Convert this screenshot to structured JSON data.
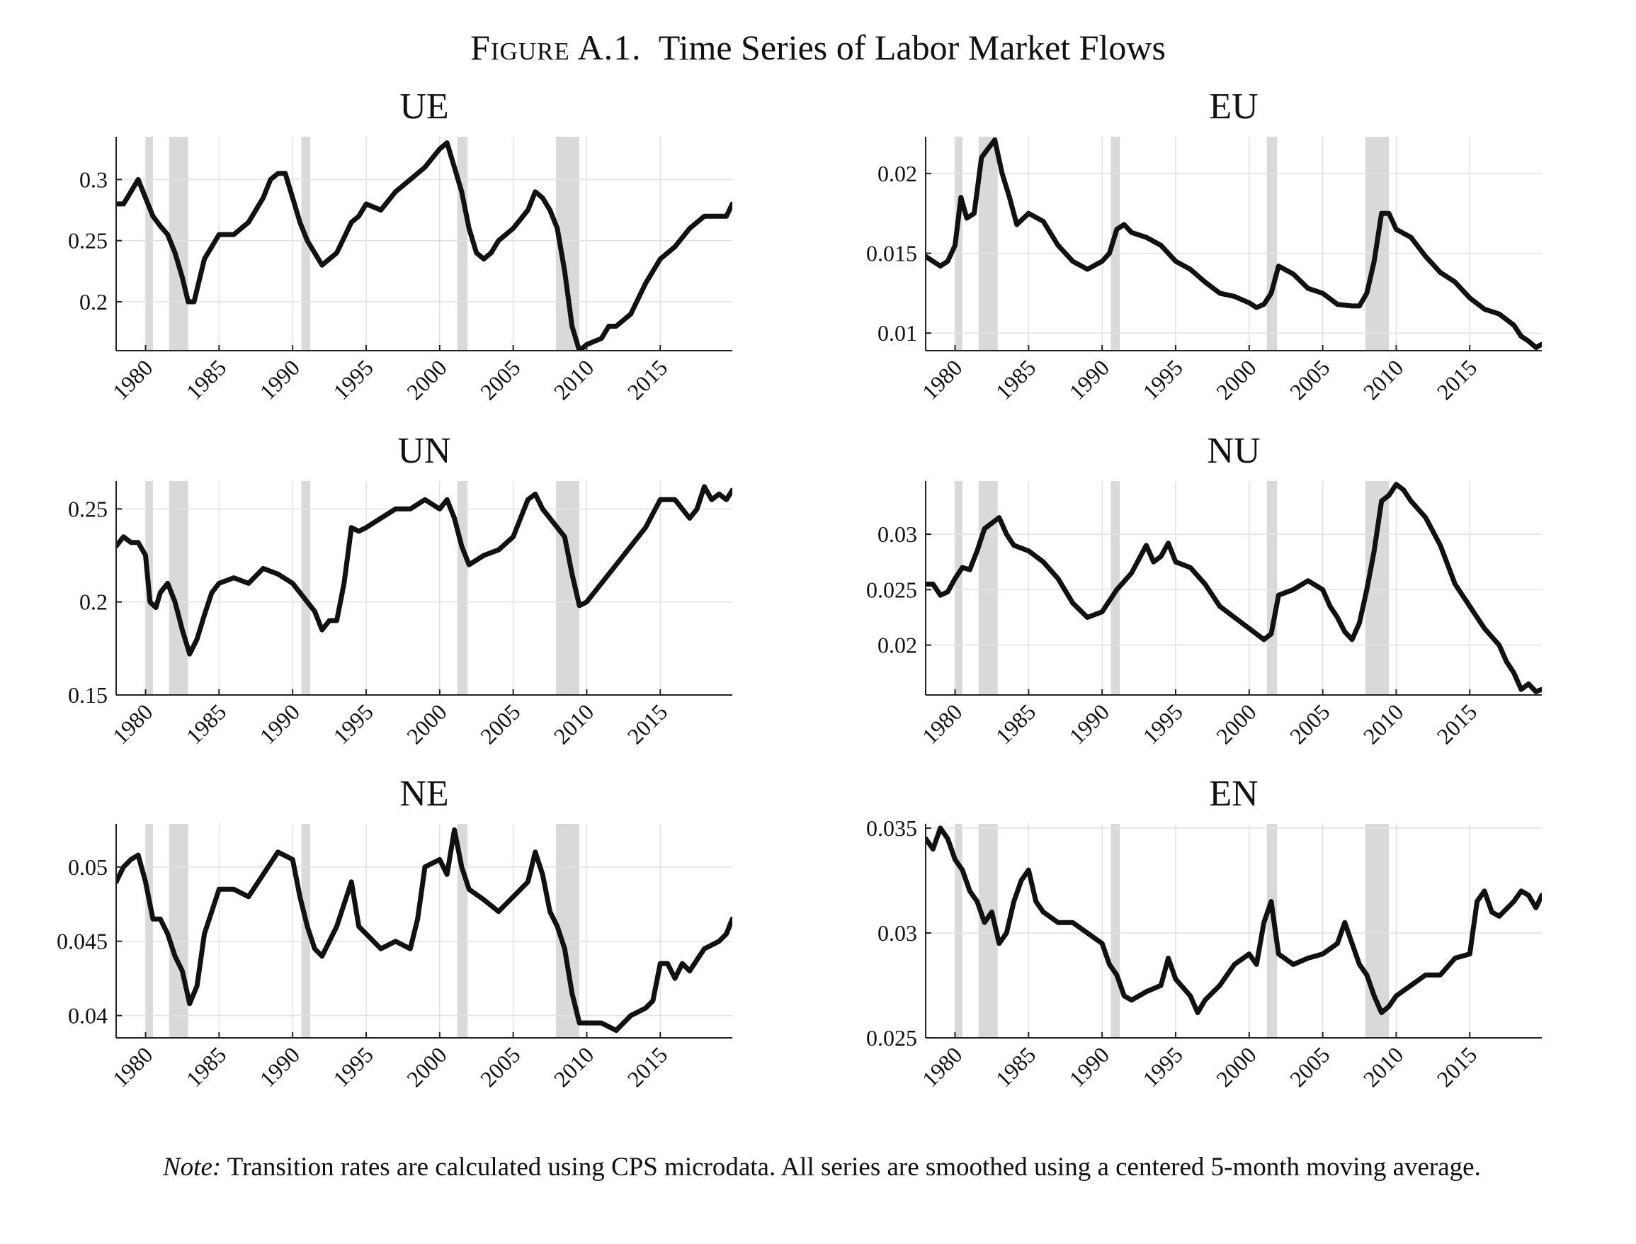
{
  "figure": {
    "label": "Figure A.1.",
    "title": "Time Series of Labor Market Flows"
  },
  "note": {
    "lead": "Note:",
    "text": "Transition rates are calculated using CPS microdata.  All series are smoothed using a centered 5-month moving average."
  },
  "colors": {
    "line": "#111111",
    "recession": "#d9d9d9",
    "grid": "#e3e3e3",
    "axis": "#222222"
  },
  "recessions": [
    [
      1980.0,
      1980.5
    ],
    [
      1981.6,
      1982.9
    ],
    [
      1990.6,
      1991.2
    ],
    [
      2001.2,
      2001.9
    ],
    [
      2007.9,
      2009.5
    ]
  ],
  "chart_data": [
    {
      "type": "line",
      "title": "UE",
      "xlim": [
        1978,
        2019.9
      ],
      "ylim": [
        0.16,
        0.335
      ],
      "xticks": [
        1980,
        1985,
        1990,
        1995,
        2000,
        2005,
        2010,
        2015
      ],
      "yticks": [
        0.2,
        0.25,
        0.3
      ],
      "ytick_labels": [
        "0.2",
        "0.25",
        "0.3"
      ],
      "grid": true,
      "series": [
        {
          "x": [
            1978,
            1978.5,
            1979,
            1979.5,
            1980,
            1980.5,
            1981,
            1981.5,
            1982,
            1982.5,
            1982.9,
            1983.3,
            1984,
            1984.5,
            1985,
            1986,
            1987,
            1988,
            1988.5,
            1989,
            1989.5,
            1990,
            1990.5,
            1991,
            1991.5,
            1992,
            1992.5,
            1993,
            1994,
            1994.5,
            1995,
            1996,
            1997,
            1998,
            1999,
            2000,
            2000.5,
            2001,
            2001.5,
            2002,
            2002.5,
            2003,
            2003.5,
            2004,
            2005,
            2006,
            2006.5,
            2007,
            2007.5,
            2008,
            2008.5,
            2009,
            2009.5,
            2010,
            2011,
            2011.5,
            2012,
            2013,
            2014,
            2015,
            2016,
            2017,
            2018,
            2018.5,
            2019,
            2019.5,
            2019.9
          ],
          "y": [
            0.28,
            0.28,
            0.29,
            0.3,
            0.285,
            0.27,
            0.262,
            0.255,
            0.24,
            0.22,
            0.2,
            0.2,
            0.235,
            0.245,
            0.255,
            0.255,
            0.265,
            0.285,
            0.3,
            0.305,
            0.305,
            0.285,
            0.265,
            0.25,
            0.24,
            0.23,
            0.235,
            0.24,
            0.265,
            0.27,
            0.28,
            0.275,
            0.29,
            0.3,
            0.31,
            0.325,
            0.33,
            0.31,
            0.29,
            0.26,
            0.24,
            0.235,
            0.24,
            0.25,
            0.26,
            0.275,
            0.29,
            0.285,
            0.275,
            0.26,
            0.225,
            0.18,
            0.16,
            0.165,
            0.17,
            0.18,
            0.18,
            0.19,
            0.215,
            0.235,
            0.245,
            0.26,
            0.27,
            0.27,
            0.27,
            0.27,
            0.28
          ]
        }
      ]
    },
    {
      "type": "line",
      "title": "EU",
      "xlim": [
        1978,
        2019.9
      ],
      "ylim": [
        0.0089,
        0.0223
      ],
      "xticks": [
        1980,
        1985,
        1990,
        1995,
        2000,
        2005,
        2010,
        2015
      ],
      "yticks": [
        0.01,
        0.015,
        0.02
      ],
      "ytick_labels": [
        "0.01",
        "0.015",
        "0.02"
      ],
      "grid": true,
      "series": [
        {
          "x": [
            1978,
            1978.5,
            1979,
            1979.5,
            1980,
            1980.4,
            1980.8,
            1981.3,
            1981.8,
            1982.2,
            1982.7,
            1983.2,
            1983.7,
            1984.2,
            1985,
            1986,
            1987,
            1988,
            1989,
            1990,
            1990.5,
            1991,
            1991.5,
            1992,
            1993,
            1994,
            1995,
            1996,
            1997,
            1998,
            1999,
            2000,
            2000.5,
            2001,
            2001.5,
            2002,
            2003,
            2004,
            2005,
            2006,
            2007,
            2007.5,
            2008,
            2008.5,
            2009,
            2009.5,
            2010,
            2011,
            2012,
            2013,
            2014,
            2015,
            2016,
            2017,
            2018,
            2018.5,
            2019,
            2019.5,
            2019.9
          ],
          "y": [
            0.0148,
            0.0145,
            0.0142,
            0.0145,
            0.0155,
            0.0185,
            0.0172,
            0.0175,
            0.021,
            0.0215,
            0.0221,
            0.02,
            0.0185,
            0.0168,
            0.0175,
            0.017,
            0.0155,
            0.0145,
            0.014,
            0.0145,
            0.015,
            0.0165,
            0.0168,
            0.0163,
            0.016,
            0.0155,
            0.0145,
            0.014,
            0.0132,
            0.0125,
            0.0123,
            0.0119,
            0.0116,
            0.0118,
            0.0125,
            0.0142,
            0.0137,
            0.0128,
            0.0125,
            0.0118,
            0.0117,
            0.0117,
            0.0125,
            0.0145,
            0.0175,
            0.0175,
            0.0165,
            0.016,
            0.0148,
            0.0138,
            0.0132,
            0.0122,
            0.0115,
            0.0112,
            0.0105,
            0.0098,
            0.0095,
            0.0091,
            0.0093
          ]
        }
      ]
    },
    {
      "type": "line",
      "title": "UN",
      "xlim": [
        1978,
        2019.9
      ],
      "ylim": [
        0.15,
        0.265
      ],
      "xticks": [
        1980,
        1985,
        1990,
        1995,
        2000,
        2005,
        2010,
        2015
      ],
      "yticks": [
        0.15,
        0.2,
        0.25
      ],
      "ytick_labels": [
        "0.15",
        "0.2",
        "0.25"
      ],
      "grid": true,
      "series": [
        {
          "x": [
            1978,
            1978.5,
            1979,
            1979.5,
            1980,
            1980.3,
            1980.7,
            1981,
            1981.5,
            1982,
            1982.5,
            1983,
            1983.5,
            1984,
            1984.5,
            1985,
            1986,
            1987,
            1988,
            1989,
            1990,
            1991,
            1991.5,
            1992,
            1992.5,
            1993,
            1993.5,
            1994,
            1994.5,
            1995,
            1996,
            1997,
            1998,
            1999,
            2000,
            2000.5,
            2001,
            2001.5,
            2002,
            2003,
            2004,
            2005,
            2005.5,
            2006,
            2006.5,
            2007,
            2008,
            2008.5,
            2009,
            2009.5,
            2010,
            2011,
            2012,
            2013,
            2014,
            2015,
            2016,
            2016.5,
            2017,
            2017.5,
            2018,
            2018.5,
            2019,
            2019.5,
            2019.9
          ],
          "y": [
            0.23,
            0.235,
            0.232,
            0.232,
            0.225,
            0.2,
            0.197,
            0.205,
            0.21,
            0.2,
            0.185,
            0.172,
            0.18,
            0.193,
            0.205,
            0.21,
            0.213,
            0.21,
            0.218,
            0.215,
            0.21,
            0.2,
            0.195,
            0.185,
            0.19,
            0.19,
            0.21,
            0.24,
            0.238,
            0.24,
            0.245,
            0.25,
            0.25,
            0.255,
            0.25,
            0.255,
            0.245,
            0.23,
            0.22,
            0.225,
            0.228,
            0.235,
            0.245,
            0.255,
            0.258,
            0.25,
            0.24,
            0.235,
            0.215,
            0.198,
            0.2,
            0.21,
            0.22,
            0.23,
            0.24,
            0.255,
            0.255,
            0.25,
            0.245,
            0.25,
            0.262,
            0.255,
            0.258,
            0.255,
            0.26
          ]
        }
      ]
    },
    {
      "type": "line",
      "title": "NU",
      "xlim": [
        1978,
        2019.9
      ],
      "ylim": [
        0.0155,
        0.0348
      ],
      "xticks": [
        1980,
        1985,
        1990,
        1995,
        2000,
        2005,
        2010,
        2015
      ],
      "yticks": [
        0.02,
        0.025,
        0.03
      ],
      "ytick_labels": [
        "0.02",
        "0.025",
        "0.03"
      ],
      "grid": true,
      "series": [
        {
          "x": [
            1978,
            1978.5,
            1979,
            1979.5,
            1980,
            1980.5,
            1981,
            1981.5,
            1982,
            1982.5,
            1983,
            1983.5,
            1984,
            1985,
            1986,
            1987,
            1988,
            1989,
            1990,
            1991,
            1992,
            1993,
            1993.5,
            1994,
            1994.5,
            1995,
            1996,
            1997,
            1998,
            1999,
            2000,
            2001,
            2001.5,
            2002,
            2003,
            2004,
            2005,
            2005.5,
            2006,
            2006.5,
            2007,
            2007.5,
            2008,
            2008.5,
            2009,
            2009.5,
            2010,
            2010.5,
            2011,
            2012,
            2013,
            2014,
            2015,
            2016,
            2017,
            2017.5,
            2018,
            2018.5,
            2019,
            2019.5,
            2019.9
          ],
          "y": [
            0.0255,
            0.0255,
            0.0245,
            0.0248,
            0.026,
            0.027,
            0.0268,
            0.0285,
            0.0305,
            0.031,
            0.0315,
            0.03,
            0.029,
            0.0285,
            0.0275,
            0.026,
            0.0238,
            0.0225,
            0.023,
            0.025,
            0.0265,
            0.029,
            0.0275,
            0.028,
            0.0292,
            0.0275,
            0.027,
            0.0255,
            0.0235,
            0.0225,
            0.0215,
            0.0205,
            0.021,
            0.0245,
            0.025,
            0.0258,
            0.025,
            0.0235,
            0.0225,
            0.0212,
            0.0205,
            0.022,
            0.025,
            0.0285,
            0.033,
            0.0335,
            0.0345,
            0.034,
            0.033,
            0.0315,
            0.029,
            0.0255,
            0.0235,
            0.0215,
            0.02,
            0.0185,
            0.0175,
            0.016,
            0.0165,
            0.0158,
            0.016
          ]
        }
      ]
    },
    {
      "type": "line",
      "title": "NE",
      "xlim": [
        1978,
        2019.9
      ],
      "ylim": [
        0.0385,
        0.0529
      ],
      "xticks": [
        1980,
        1985,
        1990,
        1995,
        2000,
        2005,
        2010,
        2015
      ],
      "yticks": [
        0.04,
        0.045,
        0.05
      ],
      "ytick_labels": [
        "0.04",
        "0.045",
        "0.05"
      ],
      "grid": true,
      "series": [
        {
          "x": [
            1978,
            1978.5,
            1979,
            1979.5,
            1980,
            1980.5,
            1981,
            1981.5,
            1982,
            1982.5,
            1983,
            1983.5,
            1984,
            1984.5,
            1985,
            1986,
            1987,
            1988,
            1989,
            1990,
            1990.5,
            1991,
            1991.5,
            1992,
            1992.5,
            1993,
            1993.5,
            1994,
            1994.5,
            1995,
            1996,
            1997,
            1998,
            1998.5,
            1999,
            2000,
            2000.5,
            2001,
            2001.5,
            2002,
            2003,
            2004,
            2005,
            2006,
            2006.5,
            2007,
            2007.5,
            2008,
            2008.5,
            2009,
            2009.5,
            2010,
            2011,
            2012,
            2013,
            2014,
            2014.5,
            2015,
            2015.5,
            2016,
            2016.5,
            2017,
            2018,
            2019,
            2019.5,
            2019.9
          ],
          "y": [
            0.049,
            0.05,
            0.0505,
            0.0508,
            0.049,
            0.0465,
            0.0465,
            0.0455,
            0.044,
            0.043,
            0.0408,
            0.042,
            0.0455,
            0.047,
            0.0485,
            0.0485,
            0.048,
            0.0495,
            0.051,
            0.0505,
            0.048,
            0.046,
            0.0445,
            0.044,
            0.045,
            0.046,
            0.0475,
            0.049,
            0.046,
            0.0455,
            0.0445,
            0.045,
            0.0445,
            0.0465,
            0.05,
            0.0505,
            0.0495,
            0.0525,
            0.05,
            0.0485,
            0.0478,
            0.047,
            0.048,
            0.049,
            0.051,
            0.0495,
            0.047,
            0.046,
            0.0445,
            0.0415,
            0.0395,
            0.0395,
            0.0395,
            0.039,
            0.04,
            0.0405,
            0.041,
            0.0435,
            0.0435,
            0.0425,
            0.0435,
            0.043,
            0.0445,
            0.045,
            0.0455,
            0.0465
          ]
        }
      ]
    },
    {
      "type": "line",
      "title": "EN",
      "xlim": [
        1978,
        2019.9
      ],
      "ylim": [
        0.025,
        0.0352
      ],
      "xticks": [
        1980,
        1985,
        1990,
        1995,
        2000,
        2005,
        2010,
        2015
      ],
      "yticks": [
        0.025,
        0.03,
        0.035
      ],
      "ytick_labels": [
        "0.025",
        "0.03",
        "0.035"
      ],
      "grid": true,
      "series": [
        {
          "x": [
            1978,
            1978.5,
            1979,
            1979.5,
            1980,
            1980.5,
            1981,
            1981.5,
            1982,
            1982.5,
            1983,
            1983.5,
            1984,
            1984.5,
            1985,
            1985.5,
            1986,
            1987,
            1988,
            1989,
            1990,
            1990.5,
            1991,
            1991.5,
            1992,
            1993,
            1994,
            1994.5,
            1995,
            1996,
            1996.5,
            1997,
            1998,
            1999,
            2000,
            2000.5,
            2001,
            2001.5,
            2002,
            2003,
            2004,
            2005,
            2006,
            2006.5,
            2007,
            2007.5,
            2008,
            2008.5,
            2009,
            2009.5,
            2010,
            2011,
            2012,
            2013,
            2014,
            2015,
            2015.5,
            2016,
            2016.5,
            2017,
            2018,
            2018.5,
            2019,
            2019.5,
            2019.9
          ],
          "y": [
            0.0345,
            0.034,
            0.035,
            0.0345,
            0.0335,
            0.033,
            0.032,
            0.0315,
            0.0305,
            0.031,
            0.0295,
            0.03,
            0.0315,
            0.0325,
            0.033,
            0.0315,
            0.031,
            0.0305,
            0.0305,
            0.03,
            0.0295,
            0.0285,
            0.028,
            0.027,
            0.0268,
            0.0272,
            0.0275,
            0.0288,
            0.0278,
            0.027,
            0.0262,
            0.0268,
            0.0275,
            0.0285,
            0.029,
            0.0285,
            0.0305,
            0.0315,
            0.029,
            0.0285,
            0.0288,
            0.029,
            0.0295,
            0.0305,
            0.0295,
            0.0285,
            0.028,
            0.027,
            0.0262,
            0.0265,
            0.027,
            0.0275,
            0.028,
            0.028,
            0.0288,
            0.029,
            0.0315,
            0.032,
            0.031,
            0.0308,
            0.0315,
            0.032,
            0.0318,
            0.0312,
            0.0318
          ]
        }
      ]
    }
  ]
}
